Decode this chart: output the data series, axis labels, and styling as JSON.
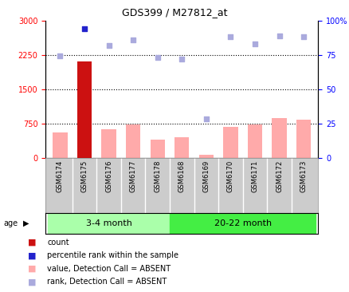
{
  "title": "GDS399 / M27812_at",
  "samples": [
    "GSM6174",
    "GSM6175",
    "GSM6176",
    "GSM6177",
    "GSM6178",
    "GSM6168",
    "GSM6169",
    "GSM6170",
    "GSM6171",
    "GSM6172",
    "GSM6173"
  ],
  "bar_values": [
    550,
    2100,
    620,
    730,
    400,
    450,
    60,
    680,
    730,
    870,
    830
  ],
  "bar_colors": [
    "#ffaaaa",
    "#cc1111",
    "#ffaaaa",
    "#ffaaaa",
    "#ffaaaa",
    "#ffaaaa",
    "#ffaaaa",
    "#ffaaaa",
    "#ffaaaa",
    "#ffaaaa",
    "#ffaaaa"
  ],
  "rank_values": [
    74,
    94,
    82,
    86,
    73,
    72,
    28,
    88,
    83,
    89,
    88
  ],
  "rank_colors": [
    "#aaaadd",
    "#2222cc",
    "#aaaadd",
    "#aaaadd",
    "#aaaadd",
    "#aaaadd",
    "#aaaadd",
    "#aaaadd",
    "#aaaadd",
    "#aaaadd",
    "#aaaadd"
  ],
  "left_ylim": [
    0,
    3000
  ],
  "right_ylim": [
    0,
    100
  ],
  "left_yticks": [
    0,
    750,
    1500,
    2250,
    3000
  ],
  "right_yticks": [
    0,
    25,
    50,
    75,
    100
  ],
  "right_yticklabels": [
    "0",
    "25",
    "50",
    "75",
    "100%"
  ],
  "hlines": [
    750,
    1500,
    2250
  ],
  "group1_color": "#aaffaa",
  "group2_color": "#44ee44",
  "group1_label": "3-4 month",
  "group2_label": "20-22 month",
  "group1_indices": [
    0,
    1,
    2,
    3,
    4
  ],
  "group2_indices": [
    5,
    6,
    7,
    8,
    9,
    10
  ],
  "age_label": "age",
  "legend": [
    {
      "color": "#cc1111",
      "label": "count"
    },
    {
      "color": "#2222cc",
      "label": "percentile rank within the sample"
    },
    {
      "color": "#ffaaaa",
      "label": "value, Detection Call = ABSENT"
    },
    {
      "color": "#aaaadd",
      "label": "rank, Detection Call = ABSENT"
    }
  ]
}
